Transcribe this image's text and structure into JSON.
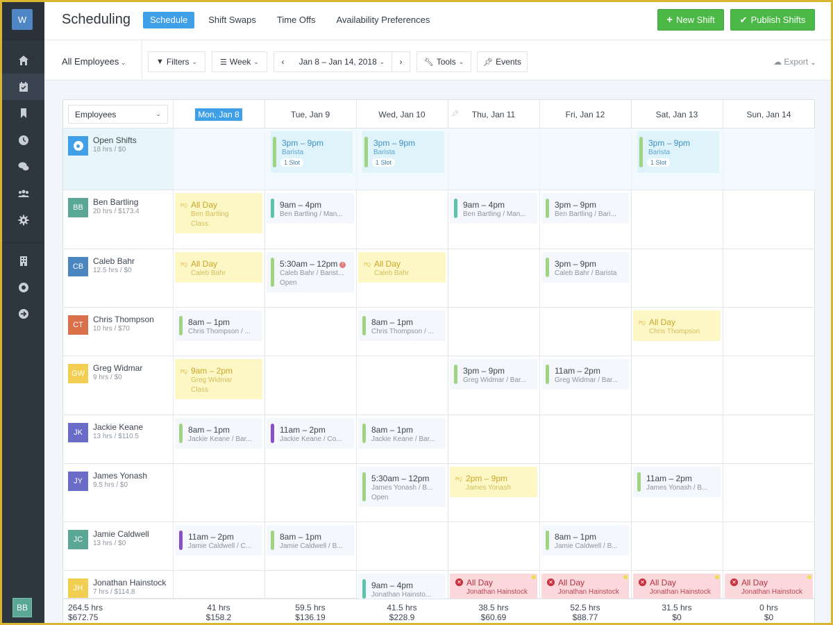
{
  "app": {
    "logo": "W",
    "title": "Scheduling",
    "user_initials": "BB"
  },
  "tabs": [
    {
      "label": "Schedule",
      "active": true
    },
    {
      "label": "Shift Swaps",
      "active": false
    },
    {
      "label": "Time Offs",
      "active": false
    },
    {
      "label": "Availability Preferences",
      "active": false
    }
  ],
  "actions": {
    "new_shift": "New Shift",
    "publish": "Publish Shifts",
    "accent": "#4bb847"
  },
  "sidebar": [
    {
      "icon": "home-icon"
    },
    {
      "icon": "calendar-check-icon",
      "active": true
    },
    {
      "icon": "bookmark-icon"
    },
    {
      "icon": "clock-icon"
    },
    {
      "icon": "chat-icon"
    },
    {
      "icon": "team-icon"
    },
    {
      "icon": "gear-icon"
    },
    {
      "icon": "building-icon"
    },
    {
      "icon": "lifebuoy-icon"
    },
    {
      "icon": "arrow-right-circle-icon"
    }
  ],
  "toolbar": {
    "employees_filter": "All Employees",
    "filters": "Filters",
    "view": "Week",
    "date_range": "Jan 8 – Jan 14, 2018",
    "tools": "Tools",
    "events": "Events",
    "export": "Export"
  },
  "grid": {
    "group_select": "Employees",
    "days": [
      "Mon, Jan 8",
      "Tue, Jan 9",
      "Wed, Jan 10",
      "Thu, Jan 11",
      "Fri, Jan 12",
      "Sat, Jan 13",
      "Sun, Jan 14"
    ],
    "today_index": 0,
    "open_shifts": {
      "name": "Open Shifts",
      "sub": "18 hrs / $0",
      "shifts": [
        {
          "day": 1,
          "time": "3pm – 9pm",
          "role": "Barista",
          "slots": "1 Slot"
        },
        {
          "day": 2,
          "time": "3pm – 9pm",
          "role": "Barista",
          "slots": "1 Slot"
        },
        {
          "day": 5,
          "time": "3pm – 9pm",
          "role": "Barista",
          "slots": "1 Slot"
        }
      ]
    },
    "employees": [
      {
        "initials": "BB",
        "color": "#5aa796",
        "name": "Ben Bartling",
        "sub": "20 hrs / $173.4",
        "shifts": [
          {
            "day": 0,
            "type": "timeoff",
            "time": "All Day",
            "line1": "Ben Bartling",
            "line2": "Class"
          },
          {
            "day": 1,
            "type": "norm",
            "bar": "#5cc4a8",
            "time": "9am – 4pm",
            "line1": "Ben Bartling / Man..."
          },
          {
            "day": 3,
            "type": "norm",
            "bar": "#5cc4a8",
            "time": "9am – 4pm",
            "line1": "Ben Bartling / Man..."
          },
          {
            "day": 4,
            "type": "norm",
            "bar": "#9fd483",
            "time": "3pm – 9pm",
            "line1": "Ben Bartling / Bari..."
          }
        ]
      },
      {
        "initials": "CB",
        "color": "#4a86c0",
        "name": "Caleb Bahr",
        "sub": "12.5 hrs / $0",
        "shifts": [
          {
            "day": 0,
            "type": "timeoff",
            "time": "All Day",
            "line1": "Caleb Bahr"
          },
          {
            "day": 1,
            "type": "norm",
            "bar": "#9fd483",
            "time": "5:30am – 12pm",
            "alert": "!",
            "line1": "Caleb Bahr / Barist...",
            "line2": "Open"
          },
          {
            "day": 2,
            "type": "timeoff",
            "time": "All Day",
            "line1": "Caleb Bahr"
          },
          {
            "day": 4,
            "type": "norm",
            "bar": "#9fd483",
            "time": "3pm – 9pm",
            "line1": "Caleb Bahr / Barista"
          }
        ]
      },
      {
        "initials": "CT",
        "color": "#d9704a",
        "name": "Chris Thompson",
        "sub": "10 hrs / $70",
        "shifts": [
          {
            "day": 0,
            "type": "norm",
            "bar": "#9fd483",
            "time": "8am – 1pm",
            "line1": "Chris Thompson / ..."
          },
          {
            "day": 2,
            "type": "norm",
            "bar": "#9fd483",
            "time": "8am – 1pm",
            "line1": "Chris Thompson / ..."
          },
          {
            "day": 5,
            "type": "timeoff",
            "time": "All Day",
            "line1": "Chris Thompson"
          }
        ]
      },
      {
        "initials": "GW",
        "color": "#f2cf52",
        "name": "Greg Widmar",
        "sub": "9 hrs / $0",
        "shifts": [
          {
            "day": 0,
            "type": "timeoff",
            "time": "9am – 2pm",
            "line1": "Greg Widmar",
            "line2": "Class"
          },
          {
            "day": 3,
            "type": "norm",
            "bar": "#9fd483",
            "time": "3pm – 9pm",
            "line1": "Greg Widmar / Bar..."
          },
          {
            "day": 4,
            "type": "norm",
            "bar": "#9fd483",
            "time": "11am – 2pm",
            "line1": "Greg Widmar / Bar..."
          }
        ]
      },
      {
        "initials": "JK",
        "color": "#6a6cc8",
        "name": "Jackie Keane",
        "sub": "13 hrs / $110.5",
        "shifts": [
          {
            "day": 0,
            "type": "norm",
            "bar": "#9fd483",
            "time": "8am – 1pm",
            "line1": "Jackie Keane / Bar..."
          },
          {
            "day": 1,
            "type": "norm",
            "bar": "#8a4fc4",
            "time": "11am – 2pm",
            "line1": "Jackie Keane / Co..."
          },
          {
            "day": 2,
            "type": "norm",
            "bar": "#9fd483",
            "time": "8am – 1pm",
            "line1": "Jackie Keane / Bar..."
          }
        ]
      },
      {
        "initials": "JY",
        "color": "#6a6cc8",
        "name": "James Yonash",
        "sub": "9.5 hrs / $0",
        "shifts": [
          {
            "day": 2,
            "type": "norm",
            "bar": "#9fd483",
            "time": "5:30am – 12pm",
            "line1": "James Yonash / B...",
            "line2": "Open"
          },
          {
            "day": 3,
            "type": "timeoff",
            "time": "2pm – 9pm",
            "line1": "James Yonash"
          },
          {
            "day": 5,
            "type": "norm",
            "bar": "#9fd483",
            "time": "11am – 2pm",
            "line1": "James Yonash / B..."
          }
        ]
      },
      {
        "initials": "JC",
        "color": "#5aa796",
        "name": "Jamie Caldwell",
        "sub": "13 hrs / $0",
        "shifts": [
          {
            "day": 0,
            "type": "norm",
            "bar": "#8a4fc4",
            "time": "11am – 2pm",
            "line1": "Jamie Caldwell / C..."
          },
          {
            "day": 1,
            "type": "norm",
            "bar": "#9fd483",
            "time": "8am – 1pm",
            "line1": "Jamie Caldwell / B..."
          },
          {
            "day": 4,
            "type": "norm",
            "bar": "#9fd483",
            "time": "8am – 1pm",
            "line1": "Jamie Caldwell / B..."
          }
        ]
      },
      {
        "initials": "JH",
        "color": "#f2cf52",
        "name": "Jonathan Hainstock",
        "sub": "7 hrs / $114.8",
        "shifts": [
          {
            "day": 2,
            "type": "norm",
            "bar": "#5cc4a8",
            "time": "9am – 4pm",
            "line1": "Jonathan Hainsto..."
          },
          {
            "day": 3,
            "type": "unavail",
            "time": "All Day",
            "line1": "Jonathan Hainstock"
          },
          {
            "day": 4,
            "type": "unavail",
            "time": "All Day",
            "line1": "Jonathan Hainstock"
          },
          {
            "day": 5,
            "type": "unavail",
            "time": "All Day",
            "line1": "Jonathan Hainstock"
          },
          {
            "day": 6,
            "type": "unavail",
            "time": "All Day",
            "line1": "Jonathan Hainstock"
          }
        ]
      }
    ],
    "totals": {
      "overall": {
        "hrs": "264.5 hrs",
        "cost": "$672.75"
      },
      "days": [
        {
          "hrs": "41 hrs",
          "cost": "$158.2"
        },
        {
          "hrs": "59.5 hrs",
          "cost": "$136.19"
        },
        {
          "hrs": "41.5 hrs",
          "cost": "$228.9"
        },
        {
          "hrs": "38.5 hrs",
          "cost": "$60.69"
        },
        {
          "hrs": "52.5 hrs",
          "cost": "$88.77"
        },
        {
          "hrs": "31.5 hrs",
          "cost": "$0"
        },
        {
          "hrs": "0 hrs",
          "cost": "$0"
        }
      ]
    }
  }
}
